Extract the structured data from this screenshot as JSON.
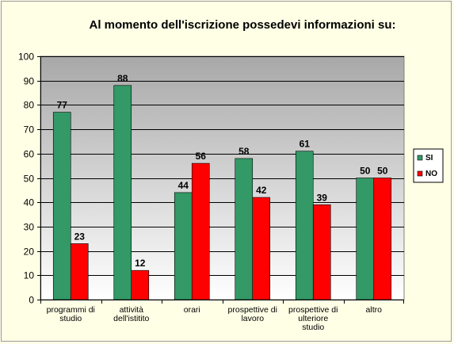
{
  "chart_data": {
    "type": "bar",
    "title": "Al momento dell'iscrizione possedevi informazioni su:",
    "categories": [
      [
        "programmi di",
        "studio"
      ],
      [
        "attività",
        "dell'istitito"
      ],
      [
        "orari"
      ],
      [
        "prospettive di",
        "lavoro"
      ],
      [
        "prospettive  di",
        "ulteriore",
        "studio"
      ],
      [
        "altro"
      ]
    ],
    "series": [
      {
        "name": "SI",
        "color": "#339966",
        "values": [
          77,
          88,
          44,
          58,
          61,
          50
        ]
      },
      {
        "name": "NO",
        "color": "#ff0000",
        "values": [
          23,
          12,
          56,
          42,
          39,
          50
        ]
      }
    ],
    "ylim": [
      0,
      100
    ],
    "yticks": [
      0,
      10,
      20,
      30,
      40,
      50,
      60,
      70,
      80,
      90,
      100
    ],
    "xlabel": "",
    "ylabel": "",
    "grid": true,
    "legend_position": "right",
    "background_gradient": [
      "#a8a8a8",
      "#ffffff"
    ]
  }
}
